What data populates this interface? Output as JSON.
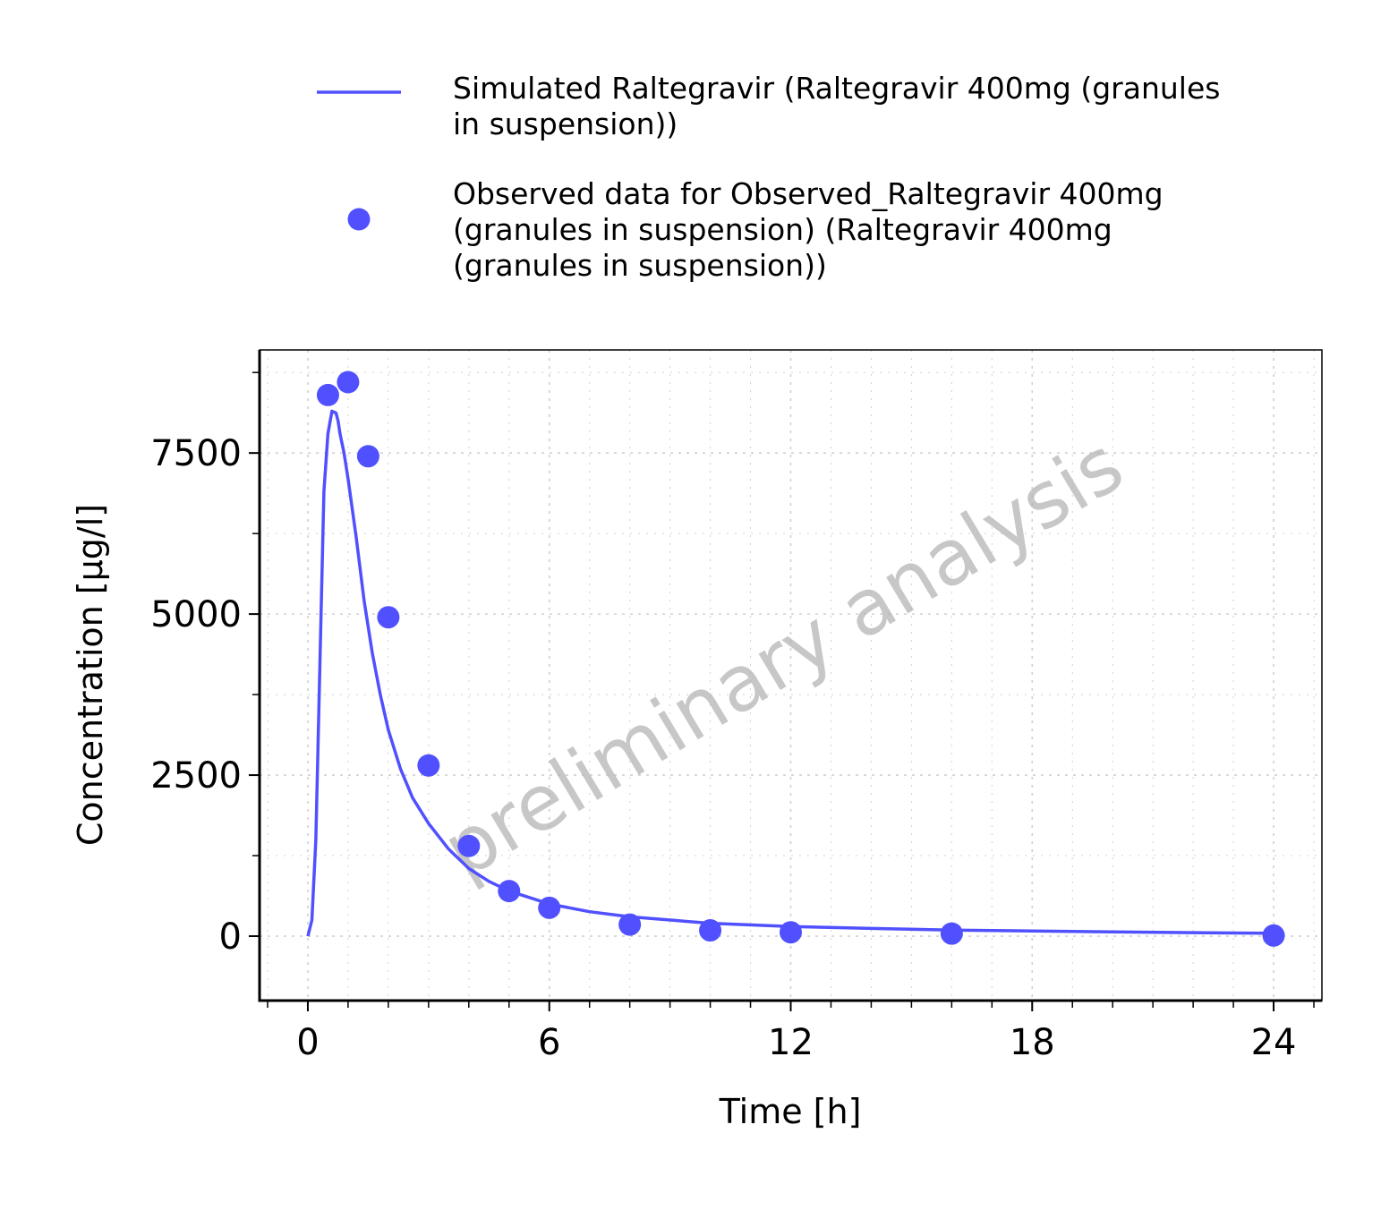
{
  "chart_data": {
    "type": "scatter",
    "title": "",
    "xlabel": "Time [h]",
    "ylabel": "Concentration [µg/l]",
    "xlim": [
      -1.2,
      25.2
    ],
    "ylim": [
      -1000,
      9100
    ],
    "x_ticks": [
      0,
      6,
      12,
      18,
      24
    ],
    "x_tick_labels": [
      "0",
      "6",
      "12",
      "18",
      "24"
    ],
    "y_ticks": [
      0,
      2500,
      5000,
      7500
    ],
    "y_tick_labels": [
      "0",
      "2500",
      "5000",
      "7500"
    ],
    "grid": true,
    "legend_position": "top",
    "watermark": "preliminary analysis",
    "colors": {
      "series": "#5050ff",
      "grid": "#d0d0d0",
      "watermark": "#b4b4b4"
    },
    "series": [
      {
        "name": "Simulated Raltegravir (Raltegravir 400mg (granules in suspension))",
        "legend_lines": [
          "Simulated Raltegravir (Raltegravir 400mg (granules",
          "in suspension))"
        ],
        "kind": "line",
        "x": [
          0,
          0.1,
          0.2,
          0.3,
          0.4,
          0.5,
          0.6,
          0.7,
          0.75,
          0.8,
          0.9,
          1.0,
          1.2,
          1.4,
          1.6,
          1.8,
          2.0,
          2.3,
          2.6,
          3.0,
          3.5,
          4.0,
          4.5,
          5.0,
          6.0,
          7.0,
          8.0,
          10.0,
          12.0,
          14.0,
          16.0,
          18.0,
          20.0,
          22.0,
          24.0
        ],
        "y": [
          0,
          250,
          1500,
          4200,
          6900,
          7800,
          8150,
          8120,
          8000,
          7800,
          7500,
          7100,
          6200,
          5200,
          4400,
          3750,
          3200,
          2600,
          2150,
          1750,
          1350,
          1050,
          850,
          700,
          500,
          380,
          300,
          200,
          150,
          120,
          95,
          80,
          65,
          55,
          45
        ]
      },
      {
        "name": "Observed data for Observed_Raltegravir 400mg (granules in suspension) (Raltegravir 400mg (granules in suspension))",
        "legend_lines": [
          "Observed data for Observed_Raltegravir 400mg",
          "(granules in suspension) (Raltegravir 400mg",
          "(granules in suspension))"
        ],
        "kind": "scatter",
        "x": [
          0.5,
          1.0,
          1.5,
          2.0,
          3.0,
          4.0,
          5.0,
          6.0,
          8.0,
          10.0,
          12.0,
          16.0,
          24.0
        ],
        "y": [
          8400,
          8600,
          7450,
          4950,
          2650,
          1400,
          700,
          440,
          180,
          90,
          60,
          40,
          10
        ]
      }
    ]
  }
}
